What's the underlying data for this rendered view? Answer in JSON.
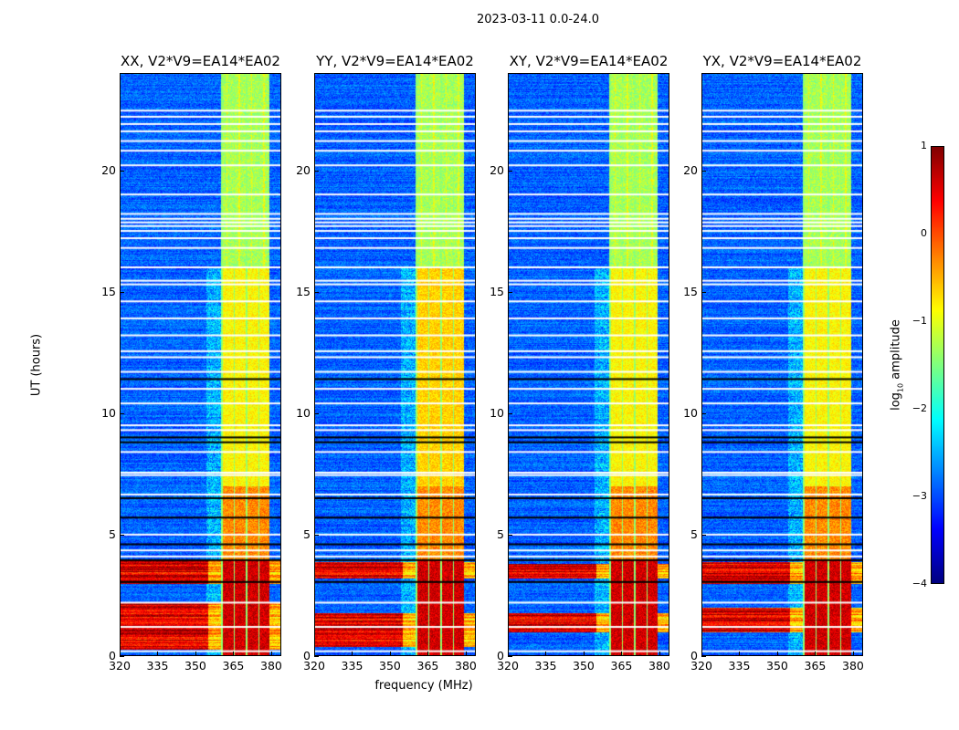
{
  "chart_data": {
    "type": "heatmap",
    "title": "2023-03-11 0.0-24.0",
    "xlabel": "frequency (MHz)",
    "ylabel": "UT (hours)",
    "xlim": [
      320,
      384
    ],
    "ylim": [
      0,
      24
    ],
    "xticks": [
      "320",
      "335",
      "350",
      "365",
      "380"
    ],
    "xtick_values": [
      320,
      335,
      350,
      365,
      380
    ],
    "yticks": [
      "0",
      "5",
      "10",
      "15",
      "20"
    ],
    "ytick_values": [
      0,
      5,
      10,
      15,
      20
    ],
    "colormap": "jet",
    "colorbar": {
      "label": "log10 amplitude",
      "label_main": "log",
      "label_sub": "10",
      "label_rest": " amplitude",
      "range": [
        -4,
        1
      ],
      "ticks": [
        "1",
        "0",
        "−1",
        "−2",
        "−3",
        "−4"
      ],
      "tick_values": [
        1,
        0,
        -1,
        -2,
        -3,
        -4
      ]
    },
    "panels": [
      {
        "title": "XX, V2*V9=EA14*EA02",
        "strong_rfi_hours": [
          [
            0.3,
            2.2
          ],
          [
            3.0,
            4.0
          ]
        ]
      },
      {
        "title": "YY, V2*V9=EA14*EA02",
        "strong_rfi_hours": [
          [
            0.4,
            1.8
          ],
          [
            3.2,
            3.9
          ]
        ]
      },
      {
        "title": "XY, V2*V9=EA14*EA02",
        "strong_rfi_hours": [
          [
            1.0,
            1.8
          ],
          [
            3.2,
            3.8
          ]
        ]
      },
      {
        "title": "YX, V2*V9=EA14*EA02",
        "strong_rfi_hours": [
          [
            1.0,
            2.0
          ],
          [
            3.0,
            3.9
          ]
        ]
      }
    ],
    "rfi_band_mhz": [
      360,
      379
    ],
    "flagged_hours": [
      22.45,
      22.2,
      21.9,
      21.6,
      21.2,
      20.8,
      20.2,
      19.0,
      18.2,
      18.0,
      17.85,
      17.7,
      17.5,
      17.2,
      16.8,
      16.0,
      15.45,
      15.3,
      14.6,
      13.9,
      13.2,
      12.55,
      12.3,
      11.7,
      11.0,
      10.4,
      9.5,
      9.3,
      8.4,
      7.55,
      7.45,
      6.65,
      5.0,
      4.35,
      4.1,
      2.2,
      1.2,
      0.2
    ],
    "dropout_hours": [
      11.4,
      9.0,
      8.8,
      6.5,
      5.7,
      4.6,
      3.95,
      3.05
    ]
  }
}
